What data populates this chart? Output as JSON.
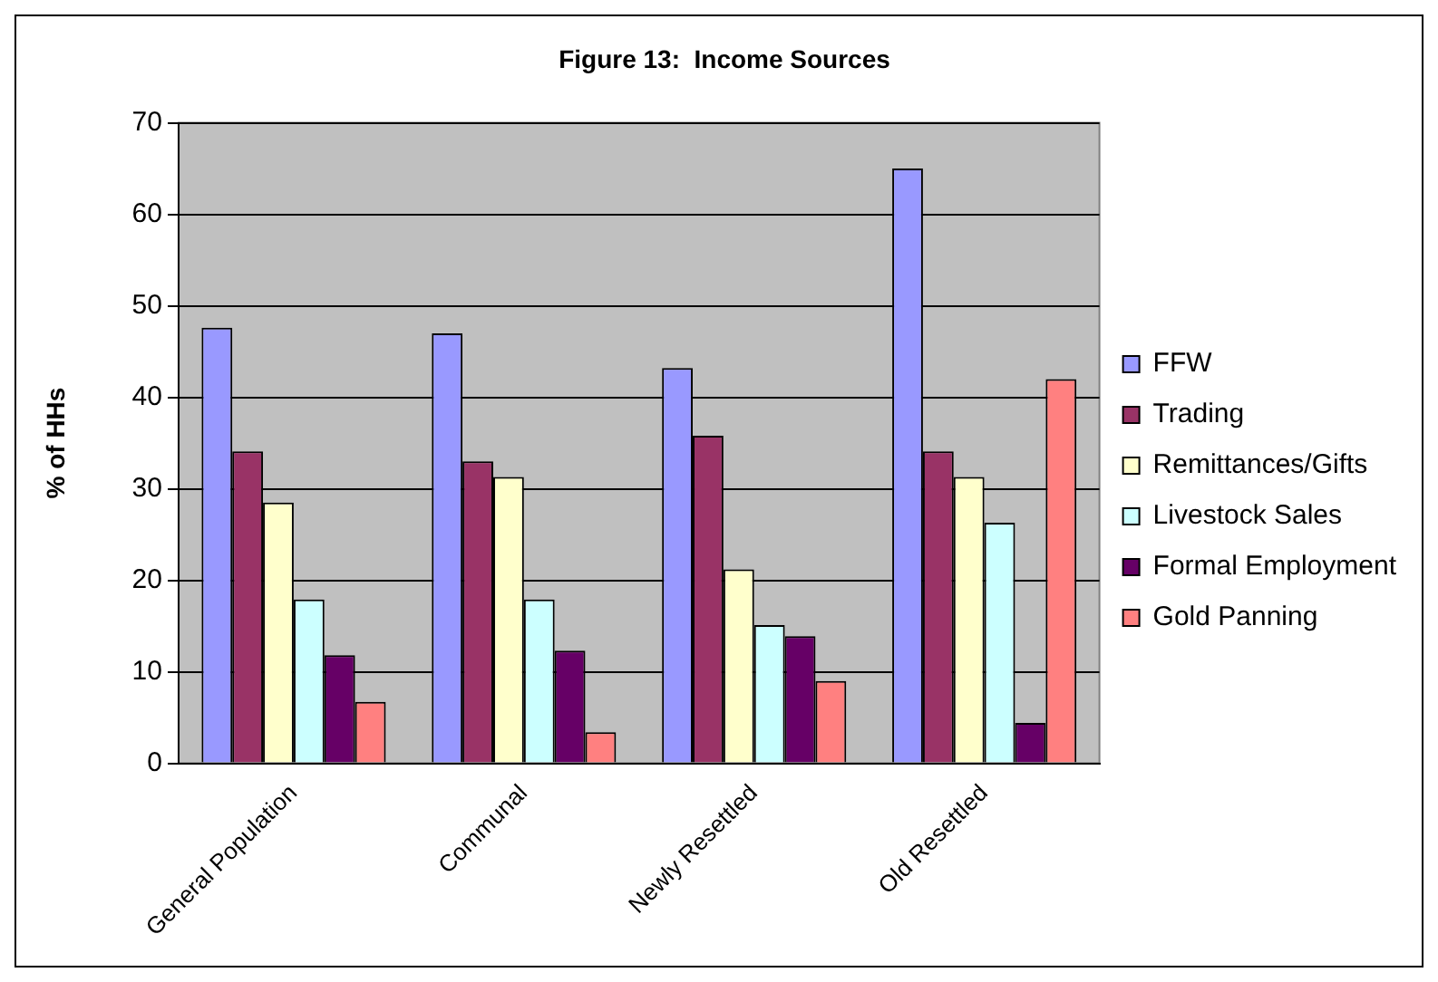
{
  "chart_data": {
    "type": "bar",
    "title": "Figure 13:  Income Sources",
    "ylabel": "% of HHs",
    "categories": [
      "General Population",
      "Communal",
      "Newly Resettled",
      "Old Resettled"
    ],
    "series": [
      {
        "name": "FFW",
        "color": "#9999ff",
        "values": [
          47.6,
          47.0,
          43.2,
          65.0
        ]
      },
      {
        "name": "Trading",
        "color": "#993366",
        "values": [
          34.1,
          33.0,
          35.8,
          34.1
        ]
      },
      {
        "name": "Remittances/Gifts",
        "color": "#ffffcc",
        "values": [
          28.5,
          31.3,
          21.2,
          31.3
        ]
      },
      {
        "name": "Livestock Sales",
        "color": "#ccffff",
        "values": [
          17.9,
          17.9,
          15.1,
          26.3
        ]
      },
      {
        "name": "Formal Employment",
        "color": "#660066",
        "values": [
          11.8,
          12.3,
          13.9,
          4.4
        ]
      },
      {
        "name": "Gold Panning",
        "color": "#ff8080",
        "values": [
          6.7,
          3.4,
          9.0,
          42.0
        ]
      }
    ],
    "ylim": [
      0,
      70
    ],
    "yticks": [
      0,
      10,
      20,
      30,
      40,
      50,
      60,
      70
    ],
    "grid": "y",
    "legend": "right"
  }
}
